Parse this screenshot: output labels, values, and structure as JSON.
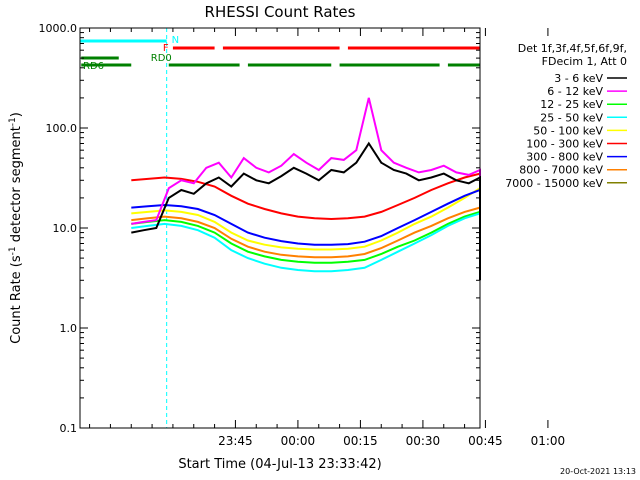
{
  "chart_data": {
    "type": "line",
    "title": "RHESSI Count Rates",
    "xlabel": "Start Time (04-Jul-13 23:33:42)",
    "ylabel": "Count Rate (s",
    "ylabel_sup": "-1",
    "ylabel_tail": " detector segment",
    "ylabel_close": ")",
    "y_scale": "log",
    "ylim": [
      0.1,
      1000.0
    ],
    "xlim_minutes": [
      -52.3,
      43.7
    ],
    "x_tick_minutes": [
      -15,
      0,
      15,
      30,
      45,
      60
    ],
    "x_tick_labels": [
      "23:45",
      "00:00",
      "00:15",
      "00:30",
      "00:45",
      "01:00"
    ],
    "y_ticks": [
      0.1,
      1.0,
      10.0,
      100.0,
      1000.0
    ],
    "y_tick_labels": [
      "0.1",
      "1.0",
      "10.0",
      "100.0",
      "1000.0"
    ],
    "legend_header": [
      "Det 1f,3f,4f,5f,6f,9f,",
      "FDecim 1, Att 0"
    ],
    "legend_position": "right",
    "timestamp": "20-Oct-2021 13:13",
    "data_window_minutes": [
      -40,
      62
    ],
    "spacecraft_events": {
      "night_solid_minutes": [
        -52.3,
        51.5
      ],
      "night_dashed_minutes": [
        -31.5,
        72.5
      ],
      "night_label": "N",
      "flare_label": "F",
      "flare_segments_minutes": [
        [
          -30,
          -20
        ],
        [
          -18,
          10
        ],
        [
          12,
          45
        ]
      ],
      "rd0_label": "RD0",
      "rd0_segments_minutes": [
        [
          -52,
          -43
        ]
      ],
      "rd6_label": "RD6",
      "rd6_segments_minutes": [
        [
          -52,
          -40
        ],
        [
          -31,
          -14
        ],
        [
          -12,
          8
        ],
        [
          10,
          34
        ],
        [
          36,
          61
        ]
      ]
    },
    "series": [
      {
        "name": "3 - 6 keV",
        "color": "#000000",
        "x": [
          -40,
          -37,
          -34,
          -31,
          -28,
          -25,
          -22,
          -19,
          -16,
          -13,
          -10,
          -7,
          -4,
          -1,
          2,
          5,
          8,
          11,
          14,
          17,
          20,
          23,
          26,
          29,
          32,
          35,
          38,
          41,
          44,
          47,
          50,
          53,
          56,
          59,
          62
        ],
        "y": [
          9,
          9.5,
          10,
          20,
          24,
          22,
          28,
          32,
          26,
          35,
          30,
          28,
          33,
          40,
          35,
          30,
          38,
          36,
          45,
          70,
          45,
          38,
          35,
          30,
          32,
          35,
          30,
          28,
          32,
          30,
          28,
          22,
          15,
          6,
          3
        ]
      },
      {
        "name": "6 - 12 keV",
        "color": "#ff00ff",
        "x": [
          -40,
          -37,
          -34,
          -31,
          -28,
          -25,
          -22,
          -19,
          -16,
          -13,
          -10,
          -7,
          -4,
          -1,
          2,
          5,
          8,
          11,
          14,
          17,
          20,
          23,
          26,
          29,
          32,
          35,
          38,
          41,
          44,
          47,
          50,
          53,
          56,
          59,
          62
        ],
        "y": [
          11,
          11.5,
          12,
          25,
          30,
          28,
          40,
          45,
          32,
          50,
          40,
          36,
          42,
          55,
          45,
          38,
          50,
          48,
          60,
          200,
          60,
          45,
          40,
          36,
          38,
          42,
          36,
          34,
          38,
          36,
          33,
          26,
          18,
          8,
          4
        ]
      },
      {
        "name": "12 - 25 keV",
        "color": "#00ff00",
        "x": [
          -40,
          -36,
          -32,
          -28,
          -24,
          -20,
          -16,
          -12,
          -8,
          -4,
          0,
          4,
          8,
          12,
          16,
          20,
          24,
          28,
          32,
          36,
          40,
          44,
          48,
          52,
          56,
          60,
          62
        ],
        "y": [
          11,
          11.5,
          12,
          11.5,
          10.5,
          9,
          7,
          5.8,
          5.2,
          4.8,
          4.6,
          4.5,
          4.5,
          4.6,
          4.8,
          5.5,
          6.5,
          7.5,
          9,
          11,
          13,
          14.5,
          14,
          12.5,
          10.5,
          8,
          6
        ]
      },
      {
        "name": "25 - 50 keV",
        "color": "#00ffff",
        "x": [
          -40,
          -36,
          -32,
          -28,
          -24,
          -20,
          -16,
          -12,
          -8,
          -4,
          0,
          4,
          8,
          12,
          16,
          20,
          24,
          28,
          32,
          36,
          40,
          44,
          48,
          52,
          56,
          60,
          62
        ],
        "y": [
          10,
          10.5,
          11,
          10.5,
          9.5,
          8,
          6,
          5,
          4.4,
          4,
          3.8,
          3.7,
          3.7,
          3.8,
          4,
          4.8,
          5.8,
          7,
          8.5,
          10.5,
          12.5,
          14,
          13.5,
          12,
          10,
          7,
          5
        ]
      },
      {
        "name": "50 - 100 keV",
        "color": "#ffff00",
        "x": [
          -40,
          -36,
          -32,
          -28,
          -24,
          -20,
          -16,
          -12,
          -8,
          -4,
          0,
          4,
          8,
          12,
          16,
          20,
          24,
          28,
          32,
          36,
          40,
          44,
          48,
          52,
          56,
          60,
          62
        ],
        "y": [
          14,
          14.5,
          15,
          14.5,
          13.5,
          11.5,
          9,
          7.5,
          6.8,
          6.4,
          6.2,
          6.1,
          6.1,
          6.2,
          6.5,
          7.5,
          9,
          11,
          13,
          16,
          20,
          25,
          22,
          18,
          14,
          10,
          8
        ]
      },
      {
        "name": "100 - 300 keV",
        "color": "#ff0000",
        "x": [
          -40,
          -36,
          -32,
          -28,
          -24,
          -20,
          -16,
          -12,
          -8,
          -4,
          0,
          4,
          8,
          12,
          16,
          20,
          24,
          28,
          32,
          36,
          40,
          44,
          48,
          52,
          56,
          60,
          62
        ],
        "y": [
          30,
          31,
          32,
          31,
          29,
          26,
          21,
          17.5,
          15.5,
          14,
          13,
          12.5,
          12.3,
          12.5,
          13,
          14.5,
          17,
          20,
          24,
          28,
          32,
          35,
          34,
          30,
          26,
          20,
          16
        ]
      },
      {
        "name": "300 - 800 keV",
        "color": "#0000ff",
        "x": [
          -40,
          -36,
          -32,
          -28,
          -24,
          -20,
          -16,
          -12,
          -8,
          -4,
          0,
          4,
          8,
          12,
          16,
          20,
          24,
          28,
          32,
          36,
          40,
          44,
          48,
          52,
          56,
          60,
          62
        ],
        "y": [
          16,
          16.5,
          17,
          16.5,
          15.5,
          13.5,
          11,
          9,
          8,
          7.4,
          7,
          6.8,
          6.8,
          6.9,
          7.3,
          8.3,
          10,
          12,
          14.5,
          17.5,
          21,
          24,
          23,
          20,
          16,
          11,
          9
        ]
      },
      {
        "name": "800 - 7000 keV",
        "color": "#ff8000",
        "x": [
          -40,
          -36,
          -32,
          -28,
          -24,
          -20,
          -16,
          -12,
          -8,
          -4,
          0,
          4,
          8,
          12,
          16,
          20,
          24,
          28,
          32,
          36,
          40,
          44,
          48,
          52,
          56,
          60,
          62
        ],
        "y": [
          12,
          12.5,
          13,
          12.5,
          11.5,
          10,
          7.8,
          6.5,
          5.8,
          5.4,
          5.2,
          5.1,
          5.1,
          5.2,
          5.5,
          6.3,
          7.5,
          9,
          10.5,
          12.5,
          14.5,
          16,
          15.5,
          13.5,
          11,
          8,
          7
        ]
      },
      {
        "name": "7000 - 15000 keV",
        "color": "#808000",
        "x": [],
        "y": []
      }
    ]
  }
}
